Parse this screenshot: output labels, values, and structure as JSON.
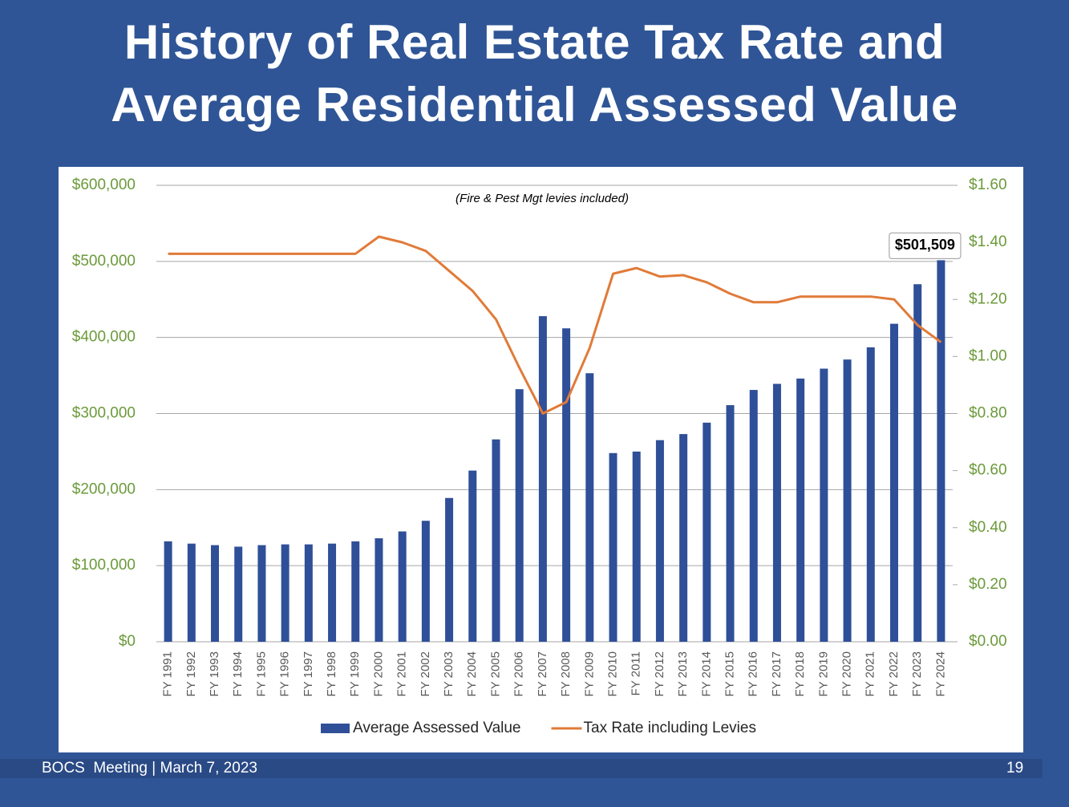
{
  "title": "History of Real Estate Tax Rate and Average Residential Assessed Value",
  "footer": {
    "text": "BOCS  Meeting | March 7, 2023",
    "page": 19
  },
  "chart_data": {
    "type": "bar",
    "annotation": "(Fire & Pest Mgt levies included)",
    "categories": [
      "FY 1991",
      "FY 1992",
      "FY 1993",
      "FY 1994",
      "FY 1995",
      "FY 1996",
      "FY 1997",
      "FY 1998",
      "FY 1999",
      "FY 2000",
      "FY 2001",
      "FY 2002",
      "FY 2003",
      "FY 2004",
      "FY 2005",
      "FY 2006",
      "FY 2007",
      "FY 2008",
      "FY 2009",
      "FY 2010",
      "FY 2011",
      "FY 2012",
      "FY 2013",
      "FY 2014",
      "FY 2015",
      "FY 2016",
      "FY 2017",
      "FY 2018",
      "FY 2019",
      "FY 2020",
      "FY 2021",
      "FY 2022",
      "FY 2023",
      "FY 2024"
    ],
    "series": [
      {
        "name": "Average Assessed Value",
        "color": "#2f4f98",
        "values": [
          132000,
          129000,
          127000,
          125000,
          127000,
          128000,
          128000,
          129000,
          132000,
          136000,
          145000,
          159000,
          189000,
          225000,
          266000,
          332000,
          428000,
          412000,
          353000,
          248000,
          250000,
          265000,
          273000,
          288000,
          311000,
          331000,
          339000,
          346000,
          359000,
          371000,
          387000,
          418000,
          470000,
          501509
        ],
        "value_labels": [
          null,
          null,
          null,
          null,
          null,
          null,
          null,
          null,
          null,
          null,
          null,
          null,
          null,
          null,
          null,
          null,
          null,
          null,
          null,
          null,
          null,
          null,
          null,
          null,
          null,
          null,
          null,
          null,
          null,
          null,
          null,
          null,
          null,
          "$501,509"
        ]
      },
      {
        "name": "Tax Rate including Levies",
        "color": "#e07b39",
        "type": "line",
        "axis": "y2",
        "values": [
          1.36,
          1.36,
          1.36,
          1.36,
          1.36,
          1.36,
          1.36,
          1.36,
          1.36,
          1.42,
          1.4,
          1.37,
          1.3,
          1.23,
          1.13,
          0.96,
          0.8,
          0.84,
          1.03,
          1.29,
          1.31,
          1.28,
          1.285,
          1.26,
          1.22,
          1.19,
          1.19,
          1.21,
          1.21,
          1.21,
          1.21,
          1.2,
          1.11,
          1.05
        ]
      }
    ],
    "ylim": [
      0,
      600000
    ],
    "yticks": [
      {
        "value": 0,
        "label": "$0"
      },
      {
        "value": 100000,
        "label": "$100,000"
      },
      {
        "value": 200000,
        "label": "$200,000"
      },
      {
        "value": 300000,
        "label": "$300,000"
      },
      {
        "value": 400000,
        "label": "$400,000"
      },
      {
        "value": 500000,
        "label": "$500,000"
      },
      {
        "value": 600000,
        "label": "$600,000"
      }
    ],
    "y2lim": [
      0,
      1.6
    ],
    "y2ticks": [
      {
        "value": 0,
        "label": "$0.00"
      },
      {
        "value": 0.2,
        "label": "$0.20"
      },
      {
        "value": 0.4,
        "label": "$0.40"
      },
      {
        "value": 0.6,
        "label": "$0.60"
      },
      {
        "value": 0.8,
        "label": "$0.80"
      },
      {
        "value": 1.0,
        "label": "$1.00"
      },
      {
        "value": 1.2,
        "label": "$1.20"
      },
      {
        "value": 1.4,
        "label": "$1.40"
      },
      {
        "value": 1.6,
        "label": "$1.60"
      }
    ],
    "grid": true,
    "legend": "bottom"
  }
}
